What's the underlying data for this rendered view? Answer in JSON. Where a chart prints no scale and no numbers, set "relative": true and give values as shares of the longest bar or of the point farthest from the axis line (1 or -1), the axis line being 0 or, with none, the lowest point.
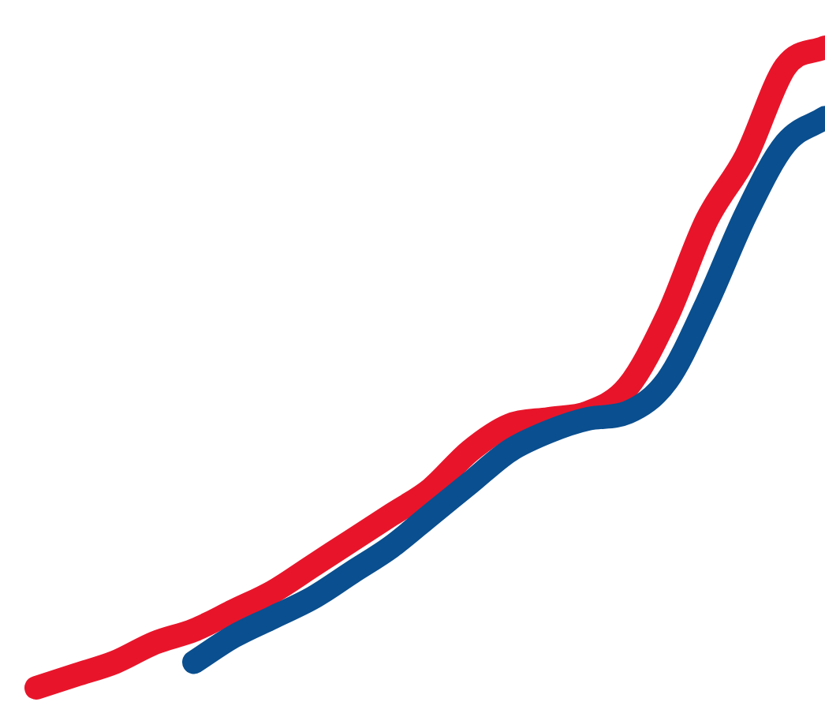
{
  "chart_data": {
    "type": "line",
    "relative": true,
    "legend": false,
    "marker": "none",
    "line_style": "solid",
    "categories": [
      null,
      null,
      null,
      null,
      null,
      null,
      null,
      null,
      null,
      null,
      null,
      null,
      null,
      null,
      null,
      null,
      null,
      null,
      null,
      null,
      null
    ],
    "series": [
      {
        "color": "#0a4f8f",
        "values": [
          null,
          null,
          null,
          null,
          0.04,
          0.08,
          0.11,
          0.14,
          0.18,
          0.22,
          0.27,
          0.32,
          0.37,
          0.4,
          0.42,
          0.43,
          0.48,
          0.6,
          0.74,
          0.85,
          0.89
        ]
      },
      {
        "color": "#e8152a",
        "values": [
          0,
          0.02,
          0.04,
          0.07,
          0.09,
          0.12,
          0.15,
          0.19,
          0.23,
          0.27,
          0.31,
          0.37,
          0.41,
          0.42,
          0.43,
          0.47,
          0.58,
          0.73,
          0.83,
          0.97,
          1
        ]
      }
    ]
  }
}
